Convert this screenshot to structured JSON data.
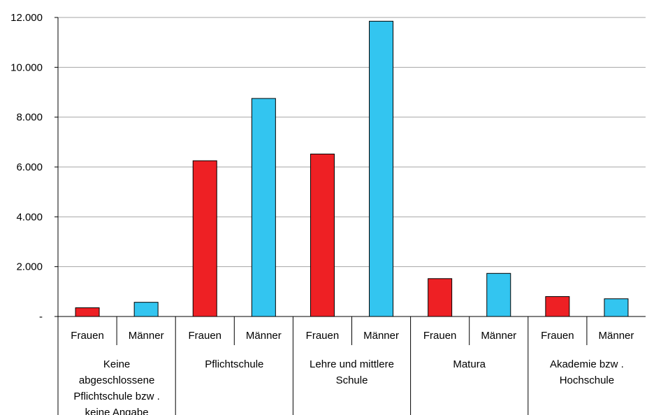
{
  "chart_data": {
    "type": "bar",
    "title": "",
    "xlabel": "",
    "ylabel": "",
    "ylim": [
      0,
      12000
    ],
    "yticks": [
      {
        "value": 0,
        "label": "-"
      },
      {
        "value": 2000,
        "label": "2.000"
      },
      {
        "value": 4000,
        "label": "4.000"
      },
      {
        "value": 6000,
        "label": "6.000"
      },
      {
        "value": 8000,
        "label": "8.000"
      },
      {
        "value": 10000,
        "label": "10.000"
      },
      {
        "value": 12000,
        "label": "12.000"
      }
    ],
    "grid": true,
    "legend": "none",
    "groups": [
      {
        "label_lines": [
          "Keine",
          "abgeschlossene",
          "Pflichtschule bzw .",
          "keine Angabe"
        ],
        "bars": [
          {
            "category": "Frauen",
            "value": 350,
            "color": "#ee2024"
          },
          {
            "category": "Männer",
            "value": 570,
            "color": "#33c5f0"
          }
        ]
      },
      {
        "label_lines": [
          "Pflichtschule"
        ],
        "bars": [
          {
            "category": "Frauen",
            "value": 6250,
            "color": "#ee2024"
          },
          {
            "category": "Männer",
            "value": 8750,
            "color": "#33c5f0"
          }
        ]
      },
      {
        "label_lines": [
          "Lehre und mittlere",
          "Schule"
        ],
        "bars": [
          {
            "category": "Frauen",
            "value": 6520,
            "color": "#ee2024"
          },
          {
            "category": "Männer",
            "value": 11850,
            "color": "#33c5f0"
          }
        ]
      },
      {
        "label_lines": [
          "Matura"
        ],
        "bars": [
          {
            "category": "Frauen",
            "value": 1520,
            "color": "#ee2024"
          },
          {
            "category": "Männer",
            "value": 1730,
            "color": "#33c5f0"
          }
        ]
      },
      {
        "label_lines": [
          "Akademie bzw .",
          "Hochschule"
        ],
        "bars": [
          {
            "category": "Frauen",
            "value": 800,
            "color": "#ee2024"
          },
          {
            "category": "Männer",
            "value": 710,
            "color": "#33c5f0"
          }
        ]
      }
    ],
    "colors": {
      "frauen": "#ee2024",
      "maenner": "#33c5f0",
      "grid": "#a6a6a6",
      "axis": "#000000"
    }
  }
}
